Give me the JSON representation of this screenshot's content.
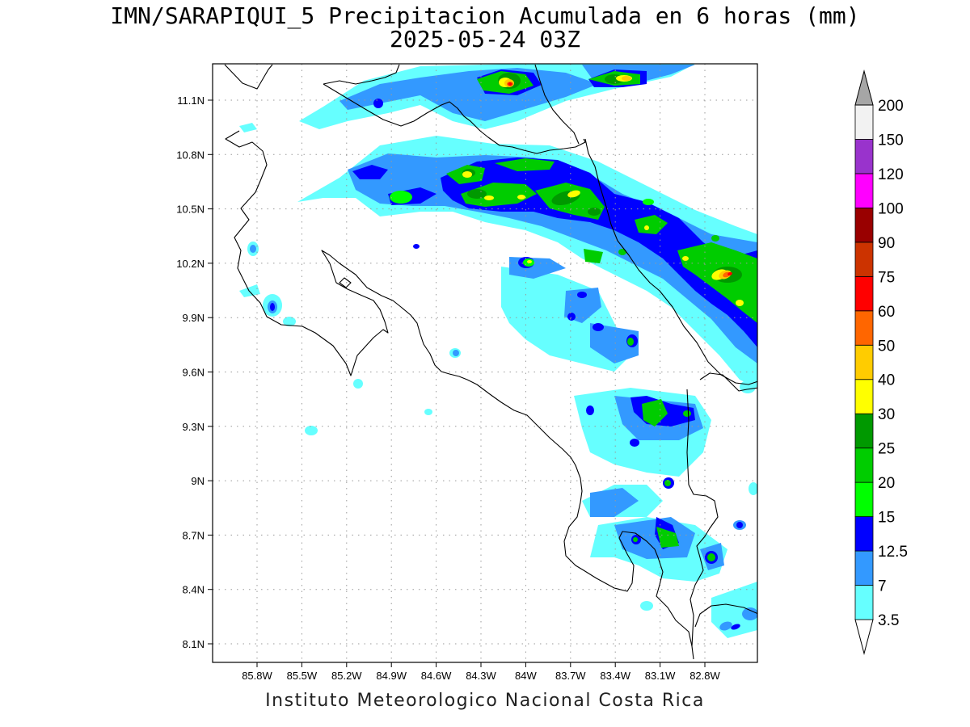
{
  "title_line1": "IMN/SARAPIQUI_5 Precipitacion Acumulada en 6 horas (mm)",
  "title_line2": "2025-05-24 03Z",
  "credit": "Instituto Meteorologico Nacional Costa Rica",
  "map": {
    "lon_labels": [
      "85.8W",
      "85.5W",
      "85.2W",
      "84.9W",
      "84.6W",
      "84.3W",
      "84W",
      "83.7W",
      "83.4W",
      "83.1W",
      "82.8W"
    ],
    "lon_values": [
      -85.8,
      -85.5,
      -85.2,
      -84.9,
      -84.6,
      -84.3,
      -84.0,
      -83.7,
      -83.4,
      -83.1,
      -82.8
    ],
    "lat_labels": [
      "11.1N",
      "10.8N",
      "10.5N",
      "10.2N",
      "9.9N",
      "9.6N",
      "9.3N",
      "9N",
      "8.7N",
      "8.4N",
      "8.1N"
    ],
    "lat_values": [
      11.1,
      10.8,
      10.5,
      10.2,
      9.9,
      9.6,
      9.3,
      9.0,
      8.7,
      8.4,
      8.1
    ],
    "grid": true,
    "colors": {
      "c3_5": "#66ffff",
      "c7": "#3399ff",
      "c12_5": "#0000ff",
      "c15": "#00ff00",
      "c20": "#00cc00",
      "c25": "#009900",
      "c30": "#ffff00",
      "c40": "#ffcc00",
      "c50": "#ff6600",
      "c60": "#ff0000",
      "c75": "#cc3300",
      "c90": "#990000",
      "c100": "#ff00ff",
      "c120": "#9933cc",
      "c150": "#f2f2f2",
      "c200": "#a6a6a6"
    }
  },
  "colorbar": {
    "labels": [
      "3.5",
      "7",
      "12.5",
      "15",
      "20",
      "25",
      "30",
      "40",
      "50",
      "60",
      "75",
      "90",
      "100",
      "120",
      "150",
      "200"
    ],
    "colors": [
      "#66ffff",
      "#3399ff",
      "#0000ff",
      "#00ff00",
      "#00cc00",
      "#009900",
      "#ffff00",
      "#ffcc00",
      "#ff6600",
      "#ff0000",
      "#cc3300",
      "#990000",
      "#ff00ff",
      "#9933cc",
      "#f2f2f2",
      "#a6a6a6"
    ]
  }
}
